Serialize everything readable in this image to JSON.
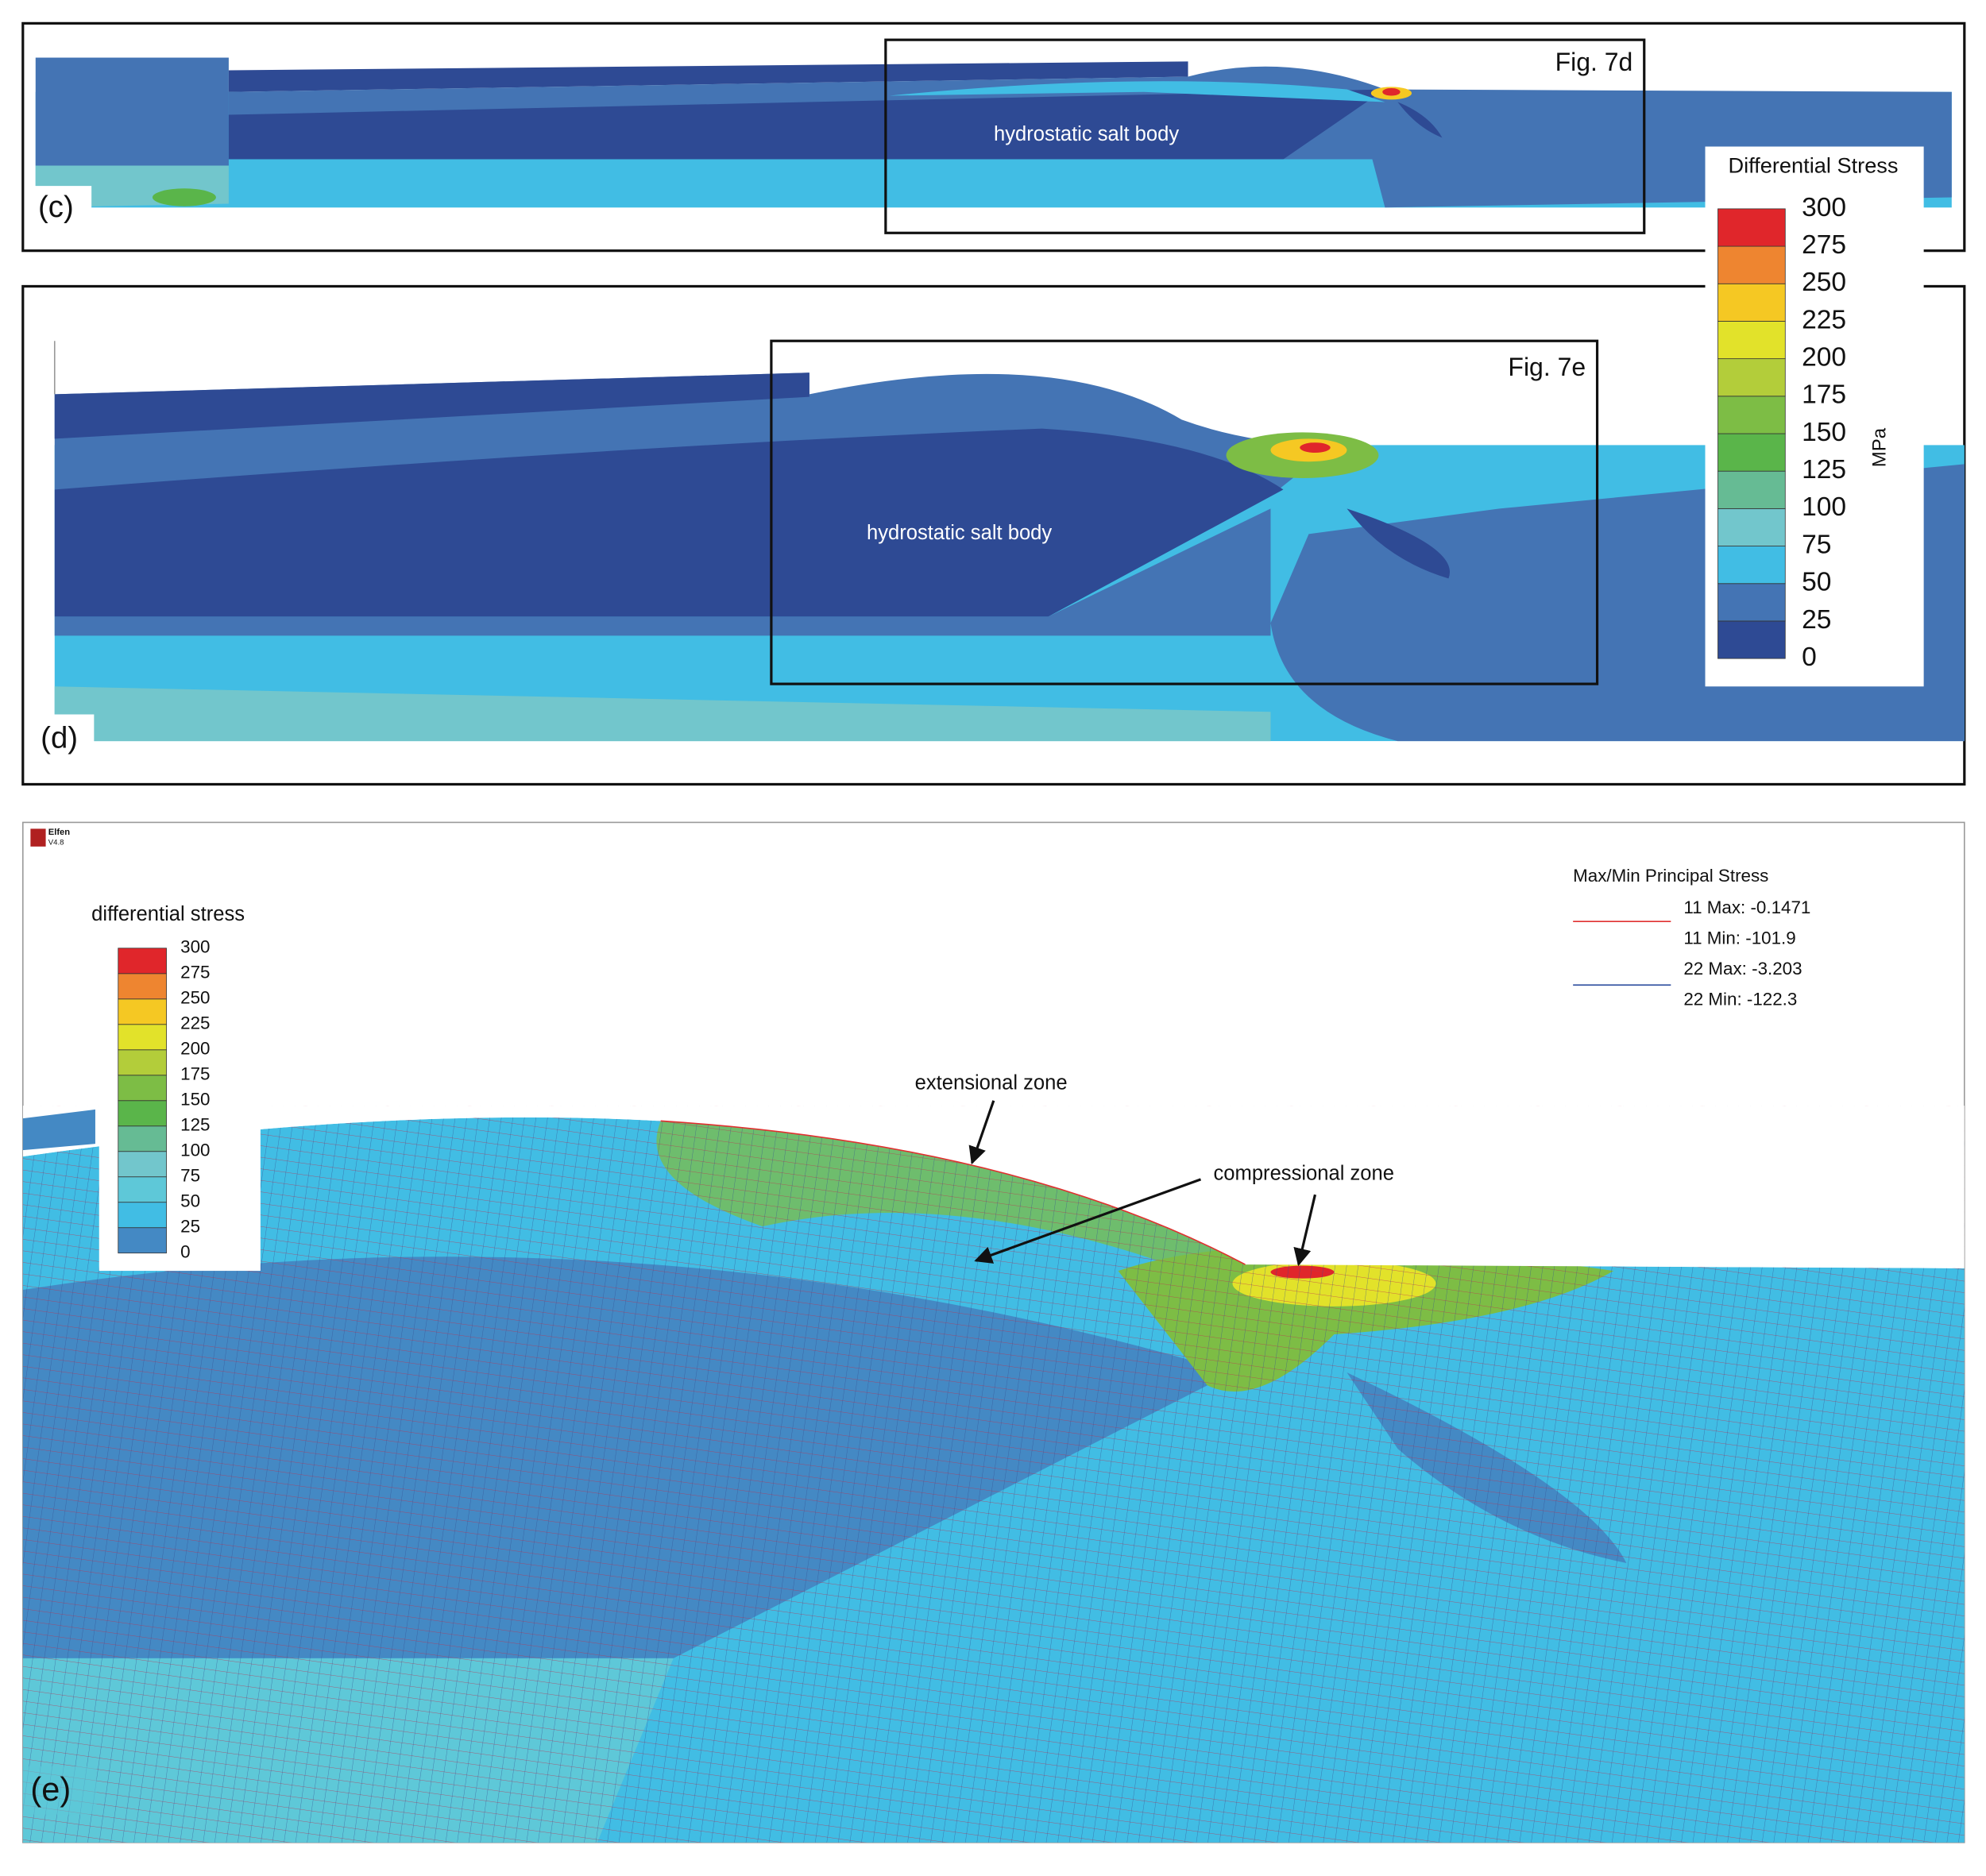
{
  "panel_c": {
    "label": "(c)",
    "box_label": "Fig. 7d",
    "body_label": "hydrostatic salt body"
  },
  "panel_d": {
    "label": "(d)",
    "box_label": "Fig. 7e",
    "body_label": "hydrostatic salt body"
  },
  "legend": {
    "title": "Differential Stress",
    "unit": "MPa",
    "levels": [
      0,
      25,
      50,
      75,
      100,
      125,
      150,
      175,
      200,
      225,
      250,
      275,
      300
    ],
    "colors": [
      "#2e4a94",
      "#4474b4",
      "#41bde4",
      "#72c6cc",
      "#66bb94",
      "#5ab54a",
      "#7dbd45",
      "#b3cd3a",
      "#e2e22a",
      "#f5c823",
      "#ee8530",
      "#e0262b"
    ]
  },
  "panel_e": {
    "label": "(e)",
    "logo": {
      "name": "Elfen",
      "version": "V4.8"
    },
    "legend": {
      "title": "differential stress",
      "levels": [
        0,
        25,
        50,
        75,
        100,
        125,
        150,
        175,
        200,
        225,
        250,
        275,
        300
      ],
      "colors": [
        "#4489c4",
        "#41bde4",
        "#5ec8d8",
        "#72c6cc",
        "#66bb94",
        "#5ab54a",
        "#7dbd45",
        "#b3cd3a",
        "#e2e22a",
        "#f5c823",
        "#ee8530",
        "#e0262b"
      ]
    },
    "principal_stress": {
      "title": "Max/Min Principal Stress",
      "entries": [
        "11 Max: -0.1471",
        "11 Min: -101.9",
        "22 Max: -3.203",
        "22 Min: -122.3"
      ],
      "colors": [
        "#e03030",
        "#3050a0"
      ]
    },
    "annotations": [
      "extensional zone",
      "compressional zone"
    ]
  }
}
